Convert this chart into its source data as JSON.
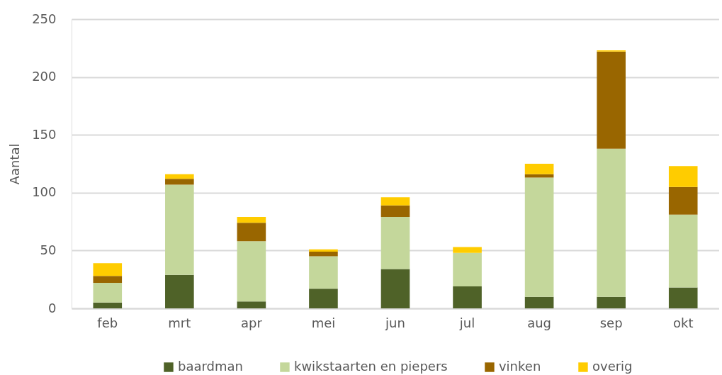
{
  "chart_data": {
    "type": "bar",
    "stacked": true,
    "ylabel": "Aantal",
    "categories": [
      "feb",
      "mrt",
      "apr",
      "mei",
      "jun",
      "jul",
      "aug",
      "sep",
      "okt"
    ],
    "series": [
      {
        "name": "baardman",
        "color": "#4f6228",
        "values": [
          5,
          29,
          6,
          17,
          34,
          19,
          10,
          10,
          18
        ]
      },
      {
        "name": "kwikstaarten en piepers",
        "color": "#c4d79b",
        "values": [
          17,
          78,
          52,
          28,
          45,
          29,
          103,
          128,
          63
        ]
      },
      {
        "name": "vinken",
        "color": "#996600",
        "values": [
          6,
          5,
          16,
          4,
          10,
          0,
          3,
          84,
          24
        ]
      },
      {
        "name": "overig",
        "color": "#ffcc00",
        "values": [
          11,
          4,
          5,
          2,
          7,
          5,
          9,
          1,
          18
        ]
      }
    ],
    "ylim": [
      0,
      250
    ],
    "yticks": [
      0,
      50,
      100,
      150,
      200,
      250
    ],
    "grid": "y",
    "legend": "bottom"
  }
}
